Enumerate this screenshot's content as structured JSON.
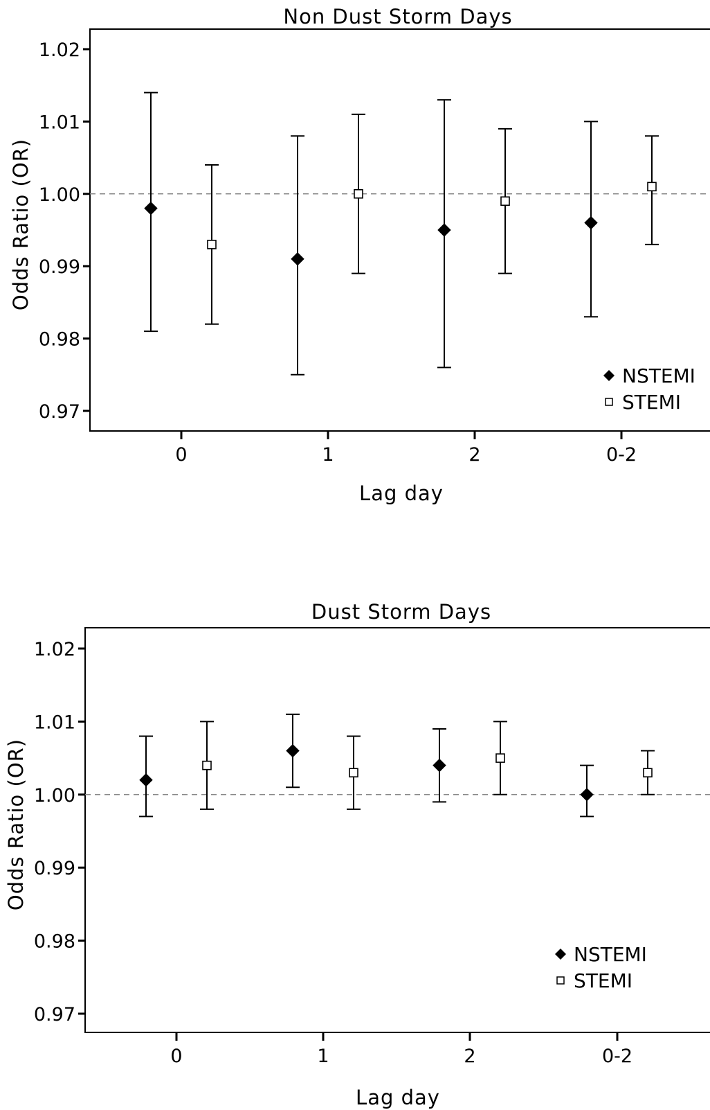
{
  "chart_data": [
    {
      "type": "scatter",
      "title": "Non Dust Storm Days",
      "xlabel": "Lag day",
      "ylabel": "Odds Ratio (OR)",
      "categories": [
        "0",
        "1",
        "2",
        "0-2"
      ],
      "ylim": [
        0.97,
        1.02
      ],
      "yticks": [
        "0.97",
        "0.98",
        "0.99",
        "1.00",
        "1.01",
        "1.02"
      ],
      "reference_line": 1.0,
      "legend_position": "bottom-right",
      "series": [
        {
          "name": "NSTEMI",
          "marker": "filled-diamond",
          "or": [
            0.998,
            0.991,
            0.995,
            0.996
          ],
          "lower": [
            0.981,
            0.975,
            0.976,
            0.983
          ],
          "upper": [
            1.014,
            1.008,
            1.013,
            1.01
          ]
        },
        {
          "name": "STEMI",
          "marker": "open-square",
          "or": [
            0.993,
            1.0,
            0.999,
            1.001
          ],
          "lower": [
            0.982,
            0.989,
            0.989,
            0.993
          ],
          "upper": [
            1.004,
            1.011,
            1.009,
            1.008
          ]
        }
      ]
    },
    {
      "type": "scatter",
      "title": "Dust Storm Days",
      "xlabel": "Lag day",
      "ylabel": "Odds Ratio (OR)",
      "categories": [
        "0",
        "1",
        "2",
        "0-2"
      ],
      "ylim": [
        0.97,
        1.02
      ],
      "yticks": [
        "0.97",
        "0.98",
        "0.99",
        "1.00",
        "1.01",
        "1.02"
      ],
      "reference_line": 1.0,
      "legend_position": "bottom-right",
      "series": [
        {
          "name": "NSTEMI",
          "marker": "filled-diamond",
          "or": [
            1.002,
            1.006,
            1.004,
            1.0
          ],
          "lower": [
            0.997,
            1.001,
            0.999,
            0.997
          ],
          "upper": [
            1.008,
            1.011,
            1.009,
            1.004
          ]
        },
        {
          "name": "STEMI",
          "marker": "open-square",
          "or": [
            1.004,
            1.003,
            1.005,
            1.003
          ],
          "lower": [
            0.998,
            0.998,
            1.0,
            1.0
          ],
          "upper": [
            1.01,
            1.008,
            1.01,
            1.006
          ]
        }
      ]
    }
  ]
}
